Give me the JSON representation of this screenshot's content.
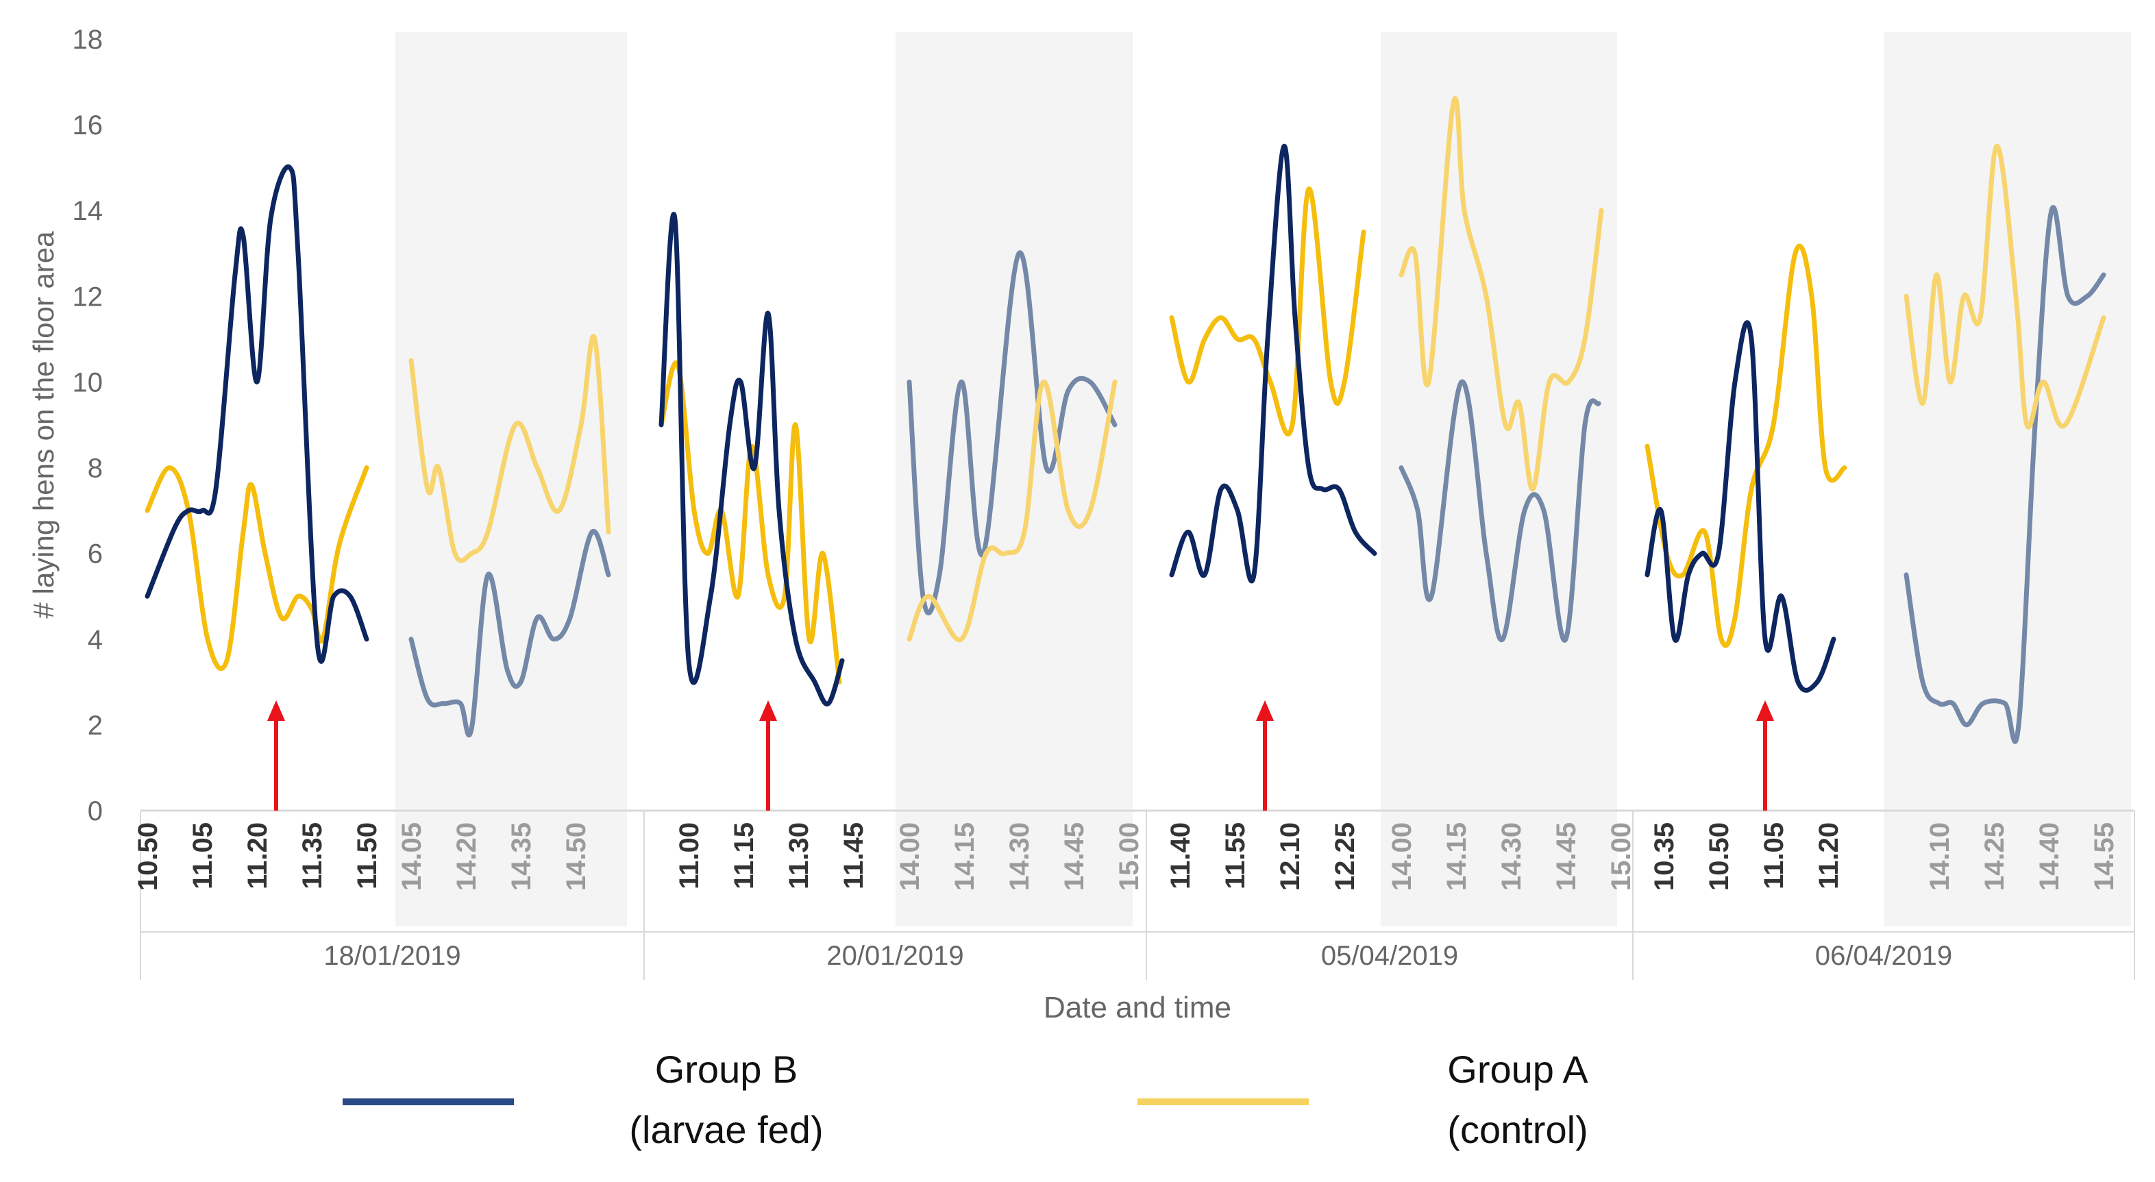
{
  "chart_data": {
    "type": "line",
    "title": "",
    "xlabel": "Date and time",
    "ylabel": "# laying hens on the floor area",
    "ylim": [
      0,
      18
    ],
    "yticks": [
      0,
      2,
      4,
      6,
      8,
      10,
      12,
      14,
      16,
      18
    ],
    "grid": false,
    "legend_position": "bottom",
    "colors": {
      "group_b": "#0d2660",
      "group_b_shaded": "#7488a8",
      "group_a": "#f5bd0c",
      "group_a_shaded": "#f7d46e",
      "arrow": "#e8131b",
      "shade": "#f4f4f4",
      "tick_text_dark": "#333333",
      "tick_text_light": "#9b9b9b",
      "axis_text": "#666666"
    },
    "legend": [
      {
        "line1": "Group B",
        "line2": "(larvae fed)",
        "color": "#2a4a86"
      },
      {
        "line1": "Group A",
        "line2": "(control)",
        "color": "#f5d35e"
      }
    ],
    "days": [
      {
        "date": "18/01/2019",
        "morning_ticks": [
          "10.50",
          "11.05",
          "11.20",
          "11.35",
          "11.50"
        ],
        "afternoon_ticks": [
          "14.05",
          "14.20",
          "14.35",
          "14.50"
        ],
        "arrow_at": 2.35,
        "morning": {
          "group_b": [
            [
              0,
              5
            ],
            [
              0.5,
              6.6
            ],
            [
              0.75,
              7
            ],
            [
              1,
              7
            ],
            [
              1.25,
              7.5
            ],
            [
              1.6,
              12.5
            ],
            [
              1.75,
              13.4
            ],
            [
              2.0,
              10
            ],
            [
              2.25,
              13.8
            ],
            [
              2.6,
              15
            ],
            [
              2.75,
              13
            ],
            [
              3.1,
              3.9
            ],
            [
              3.4,
              5
            ],
            [
              3.7,
              5
            ],
            [
              4,
              4
            ]
          ],
          "group_a": [
            [
              0,
              7
            ],
            [
              0.4,
              8
            ],
            [
              0.75,
              7
            ],
            [
              1.1,
              4
            ],
            [
              1.45,
              3.5
            ],
            [
              1.75,
              6.5
            ],
            [
              1.9,
              7.6
            ],
            [
              2.15,
              6
            ],
            [
              2.45,
              4.5
            ],
            [
              2.75,
              5
            ],
            [
              3.0,
              4.7
            ],
            [
              3.2,
              4
            ],
            [
              3.5,
              6.2
            ],
            [
              4,
              8
            ]
          ]
        },
        "afternoon": {
          "group_b": [
            [
              0,
              4
            ],
            [
              0.3,
              2.6
            ],
            [
              0.6,
              2.5
            ],
            [
              0.9,
              2.5
            ],
            [
              1.1,
              1.9
            ],
            [
              1.4,
              5.5
            ],
            [
              1.75,
              3.3
            ],
            [
              2.0,
              3
            ],
            [
              2.3,
              4.5
            ],
            [
              2.6,
              4
            ],
            [
              2.9,
              4.5
            ],
            [
              3.3,
              6.5
            ],
            [
              3.6,
              5.5
            ]
          ],
          "group_a": [
            [
              0,
              10.5
            ],
            [
              0.3,
              7.5
            ],
            [
              0.5,
              8
            ],
            [
              0.8,
              6
            ],
            [
              1.1,
              6
            ],
            [
              1.4,
              6.5
            ],
            [
              1.9,
              9
            ],
            [
              2.3,
              8
            ],
            [
              2.7,
              7
            ],
            [
              3.1,
              9
            ],
            [
              3.35,
              11
            ],
            [
              3.6,
              6.5
            ]
          ]
        }
      },
      {
        "date": "20/01/2019",
        "morning_ticks": [
          "11.00",
          "11.15",
          "11.30",
          "11.45"
        ],
        "afternoon_ticks": [
          "14.00",
          "14.15",
          "14.30",
          "14.45",
          "15.00"
        ],
        "arrow_at": 1.45,
        "morning": {
          "group_b": [
            [
              -0.5,
              9
            ],
            [
              -0.25,
              13.8
            ],
            [
              0,
              3.5
            ],
            [
              0.4,
              5
            ],
            [
              0.75,
              9
            ],
            [
              0.95,
              10
            ],
            [
              1.2,
              8
            ],
            [
              1.45,
              11.6
            ],
            [
              1.65,
              7
            ],
            [
              1.95,
              4
            ],
            [
              2.3,
              3
            ],
            [
              2.55,
              2.5
            ],
            [
              2.8,
              3.5
            ]
          ],
          "group_a": [
            [
              -0.5,
              9
            ],
            [
              -0.2,
              10.4
            ],
            [
              0.1,
              7
            ],
            [
              0.35,
              6
            ],
            [
              0.6,
              7
            ],
            [
              0.9,
              5
            ],
            [
              1.15,
              8.5
            ],
            [
              1.45,
              5.5
            ],
            [
              1.75,
              5
            ],
            [
              1.95,
              9
            ],
            [
              2.2,
              4
            ],
            [
              2.45,
              6
            ],
            [
              2.75,
              3
            ]
          ]
        },
        "afternoon": {
          "group_b": [
            [
              0,
              10
            ],
            [
              0.25,
              5
            ],
            [
              0.55,
              5.5
            ],
            [
              0.95,
              10
            ],
            [
              1.35,
              6
            ],
            [
              2.0,
              13
            ],
            [
              2.5,
              8
            ],
            [
              2.9,
              9.8
            ],
            [
              3.3,
              10
            ],
            [
              3.75,
              9
            ]
          ],
          "group_a": [
            [
              0,
              4
            ],
            [
              0.35,
              5
            ],
            [
              0.95,
              4
            ],
            [
              1.4,
              6
            ],
            [
              1.75,
              6
            ],
            [
              2.1,
              6.5
            ],
            [
              2.45,
              10
            ],
            [
              2.9,
              7
            ],
            [
              3.3,
              7
            ],
            [
              3.75,
              10
            ]
          ]
        }
      },
      {
        "date": "05/04/2019",
        "morning_ticks": [
          "11.40",
          "11.55",
          "12.10",
          "12.25"
        ],
        "afternoon_ticks": [
          "14.00",
          "14.15",
          "14.30",
          "14.45",
          "15.00"
        ],
        "arrow_at": 1.55,
        "morning": {
          "group_b": [
            [
              -0.15,
              5.5
            ],
            [
              0.15,
              6.5
            ],
            [
              0.45,
              5.5
            ],
            [
              0.75,
              7.5
            ],
            [
              1.05,
              7
            ],
            [
              1.35,
              5.5
            ],
            [
              1.6,
              11
            ],
            [
              1.9,
              15.5
            ],
            [
              2.1,
              11.5
            ],
            [
              2.35,
              8
            ],
            [
              2.6,
              7.5
            ],
            [
              2.9,
              7.5
            ],
            [
              3.2,
              6.5
            ],
            [
              3.55,
              6
            ]
          ],
          "group_a": [
            [
              -0.15,
              11.5
            ],
            [
              0.15,
              10
            ],
            [
              0.45,
              11
            ],
            [
              0.75,
              11.5
            ],
            [
              1.05,
              11
            ],
            [
              1.35,
              11
            ],
            [
              1.65,
              10
            ],
            [
              2.05,
              9
            ],
            [
              2.35,
              14.5
            ],
            [
              2.75,
              10
            ],
            [
              3.0,
              10
            ],
            [
              3.35,
              13.5
            ]
          ]
        },
        "afternoon": {
          "group_b": [
            [
              0,
              8
            ],
            [
              0.3,
              7
            ],
            [
              0.55,
              5
            ],
            [
              1.1,
              10
            ],
            [
              1.55,
              6
            ],
            [
              1.85,
              4
            ],
            [
              2.25,
              7
            ],
            [
              2.6,
              7
            ],
            [
              3.0,
              4
            ],
            [
              3.35,
              9
            ],
            [
              3.6,
              9.5
            ]
          ],
          "group_a": [
            [
              0,
              12.5
            ],
            [
              0.25,
              13
            ],
            [
              0.5,
              10
            ],
            [
              0.95,
              16.5
            ],
            [
              1.15,
              14
            ],
            [
              1.55,
              12
            ],
            [
              1.9,
              9
            ],
            [
              2.15,
              9.5
            ],
            [
              2.4,
              7.5
            ],
            [
              2.7,
              10
            ],
            [
              3.05,
              10
            ],
            [
              3.35,
              11
            ],
            [
              3.65,
              14
            ]
          ]
        }
      },
      {
        "date": "06/04/2019",
        "morning_ticks": [
          "10.35",
          "10.50",
          "11.05",
          "11.20"
        ],
        "afternoon_ticks": [
          "14.10",
          "14.25",
          "14.40",
          "14.55"
        ],
        "arrow_at": 1.85,
        "morning": {
          "group_b": [
            [
              -0.3,
              5.5
            ],
            [
              -0.05,
              7
            ],
            [
              0.2,
              4
            ],
            [
              0.45,
              5.5
            ],
            [
              0.7,
              6
            ],
            [
              1.0,
              6
            ],
            [
              1.3,
              10
            ],
            [
              1.6,
              11
            ],
            [
              1.85,
              4
            ],
            [
              2.15,
              5
            ],
            [
              2.45,
              3
            ],
            [
              2.8,
              3
            ],
            [
              3.1,
              4
            ]
          ],
          "group_a": [
            [
              -0.3,
              8.5
            ],
            [
              0.05,
              6
            ],
            [
              0.35,
              5.5
            ],
            [
              0.75,
              6.5
            ],
            [
              1.05,
              4
            ],
            [
              1.3,
              4.5
            ],
            [
              1.6,
              7.5
            ],
            [
              2.0,
              9
            ],
            [
              2.4,
              13
            ],
            [
              2.7,
              12
            ],
            [
              2.95,
              8
            ],
            [
              3.3,
              8
            ]
          ]
        },
        "afternoon": {
          "group_b": [
            [
              -0.6,
              5.5
            ],
            [
              -0.3,
              3
            ],
            [
              0,
              2.5
            ],
            [
              0.25,
              2.5
            ],
            [
              0.5,
              2
            ],
            [
              0.8,
              2.5
            ],
            [
              1.2,
              2.5
            ],
            [
              1.45,
              2
            ],
            [
              1.75,
              9
            ],
            [
              2.05,
              14
            ],
            [
              2.35,
              12
            ],
            [
              2.7,
              12
            ],
            [
              3.0,
              12.5
            ]
          ],
          "group_a": [
            [
              -0.6,
              12
            ],
            [
              -0.3,
              9.5
            ],
            [
              -0.05,
              12.5
            ],
            [
              0.2,
              10
            ],
            [
              0.45,
              12
            ],
            [
              0.75,
              11.5
            ],
            [
              1.05,
              15.5
            ],
            [
              1.4,
              12
            ],
            [
              1.6,
              9
            ],
            [
              1.9,
              10
            ],
            [
              2.3,
              9
            ],
            [
              3.0,
              11.5
            ]
          ]
        }
      }
    ]
  }
}
